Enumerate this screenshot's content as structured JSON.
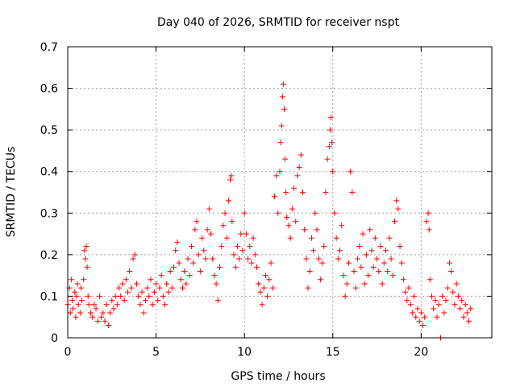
{
  "chart_data": {
    "type": "scatter",
    "title": "Day 040 of 2026, SRMTID for receiver nspt",
    "xlabel": "GPS time / hours",
    "ylabel": "SRMTID / TECUs",
    "xlim": [
      0,
      24
    ],
    "ylim": [
      0,
      0.7
    ],
    "xticks": [
      0,
      5,
      10,
      15,
      20
    ],
    "xtick_labels": [
      "0",
      "5",
      "10",
      "15",
      "20"
    ],
    "yticks": [
      0,
      0.1,
      0.2,
      0.3,
      0.4,
      0.5,
      0.6,
      0.7
    ],
    "ytick_labels": [
      "0",
      "0.1",
      "0.2",
      "0.3",
      "0.4",
      "0.5",
      "0.6",
      "0.7"
    ],
    "grid": true,
    "marker": "+",
    "series": [
      {
        "name": "SRMTID",
        "color": "#ff0000",
        "points": [
          [
            0.0,
            0.08
          ],
          [
            0.1,
            0.12
          ],
          [
            0.15,
            0.06
          ],
          [
            0.2,
            0.14
          ],
          [
            0.25,
            0.09
          ],
          [
            0.3,
            0.07
          ],
          [
            0.4,
            0.11
          ],
          [
            0.45,
            0.05
          ],
          [
            0.5,
            0.1
          ],
          [
            0.55,
            0.13
          ],
          [
            0.6,
            0.08
          ],
          [
            0.7,
            0.06
          ],
          [
            0.75,
            0.12
          ],
          [
            0.8,
            0.09
          ],
          [
            0.9,
            0.14
          ],
          [
            0.95,
            0.21
          ],
          [
            1.0,
            0.19
          ],
          [
            1.05,
            0.22
          ],
          [
            1.1,
            0.17
          ],
          [
            1.15,
            0.1
          ],
          [
            1.2,
            0.08
          ],
          [
            1.3,
            0.06
          ],
          [
            1.4,
            0.05
          ],
          [
            1.5,
            0.08
          ],
          [
            1.6,
            0.07
          ],
          [
            1.7,
            0.04
          ],
          [
            1.8,
            0.1
          ],
          [
            1.9,
            0.05
          ],
          [
            2.0,
            0.06
          ],
          [
            2.1,
            0.04
          ],
          [
            2.2,
            0.08
          ],
          [
            2.3,
            0.03
          ],
          [
            2.4,
            0.06
          ],
          [
            2.5,
            0.09
          ],
          [
            2.6,
            0.07
          ],
          [
            2.7,
            0.1
          ],
          [
            2.8,
            0.08
          ],
          [
            2.9,
            0.12
          ],
          [
            3.0,
            0.1
          ],
          [
            3.1,
            0.13
          ],
          [
            3.2,
            0.09
          ],
          [
            3.3,
            0.14
          ],
          [
            3.4,
            0.11
          ],
          [
            3.5,
            0.16
          ],
          [
            3.6,
            0.12
          ],
          [
            3.7,
            0.19
          ],
          [
            3.8,
            0.2
          ],
          [
            3.9,
            0.13
          ],
          [
            4.0,
            0.1
          ],
          [
            4.1,
            0.08
          ],
          [
            4.2,
            0.11
          ],
          [
            4.3,
            0.06
          ],
          [
            4.4,
            0.09
          ],
          [
            4.5,
            0.12
          ],
          [
            4.6,
            0.1
          ],
          [
            4.7,
            0.14
          ],
          [
            4.8,
            0.08
          ],
          [
            4.9,
            0.11
          ],
          [
            5.0,
            0.13
          ],
          [
            5.1,
            0.09
          ],
          [
            5.2,
            0.12
          ],
          [
            5.3,
            0.15
          ],
          [
            5.4,
            0.1
          ],
          [
            5.5,
            0.08
          ],
          [
            5.6,
            0.13
          ],
          [
            5.7,
            0.11
          ],
          [
            5.8,
            0.16
          ],
          [
            5.9,
            0.12
          ],
          [
            6.0,
            0.17
          ],
          [
            6.1,
            0.21
          ],
          [
            6.2,
            0.23
          ],
          [
            6.3,
            0.18
          ],
          [
            6.4,
            0.14
          ],
          [
            6.5,
            0.12
          ],
          [
            6.6,
            0.16
          ],
          [
            6.7,
            0.13
          ],
          [
            6.8,
            0.19
          ],
          [
            6.9,
            0.15
          ],
          [
            7.0,
            0.22
          ],
          [
            7.1,
            0.18
          ],
          [
            7.2,
            0.26
          ],
          [
            7.3,
            0.28
          ],
          [
            7.4,
            0.2
          ],
          [
            7.5,
            0.16
          ],
          [
            7.6,
            0.24
          ],
          [
            7.7,
            0.21
          ],
          [
            7.8,
            0.19
          ],
          [
            7.9,
            0.26
          ],
          [
            8.0,
            0.31
          ],
          [
            8.1,
            0.25
          ],
          [
            8.2,
            0.19
          ],
          [
            8.3,
            0.15
          ],
          [
            8.4,
            0.13
          ],
          [
            8.5,
            0.09
          ],
          [
            8.6,
            0.17
          ],
          [
            8.7,
            0.22
          ],
          [
            8.8,
            0.27
          ],
          [
            8.9,
            0.3
          ],
          [
            9.0,
            0.24
          ],
          [
            9.1,
            0.33
          ],
          [
            9.2,
            0.38
          ],
          [
            9.25,
            0.39
          ],
          [
            9.3,
            0.28
          ],
          [
            9.4,
            0.2
          ],
          [
            9.5,
            0.17
          ],
          [
            9.6,
            0.22
          ],
          [
            9.7,
            0.19
          ],
          [
            9.8,
            0.25
          ],
          [
            9.9,
            0.21
          ],
          [
            10.0,
            0.3
          ],
          [
            10.1,
            0.25
          ],
          [
            10.2,
            0.19
          ],
          [
            10.3,
            0.22
          ],
          [
            10.4,
            0.18
          ],
          [
            10.5,
            0.24
          ],
          [
            10.6,
            0.2
          ],
          [
            10.7,
            0.17
          ],
          [
            10.8,
            0.13
          ],
          [
            10.9,
            0.11
          ],
          [
            11.0,
            0.08
          ],
          [
            11.1,
            0.12
          ],
          [
            11.2,
            0.15
          ],
          [
            11.3,
            0.1
          ],
          [
            11.4,
            0.14
          ],
          [
            11.5,
            0.18
          ],
          [
            11.6,
            0.12
          ],
          [
            11.7,
            0.34
          ],
          [
            11.8,
            0.39
          ],
          [
            11.9,
            0.3
          ],
          [
            12.0,
            0.4
          ],
          [
            12.05,
            0.47
          ],
          [
            12.1,
            0.51
          ],
          [
            12.15,
            0.58
          ],
          [
            12.2,
            0.61
          ],
          [
            12.25,
            0.55
          ],
          [
            12.3,
            0.43
          ],
          [
            12.35,
            0.35
          ],
          [
            12.4,
            0.29
          ],
          [
            12.5,
            0.27
          ],
          [
            12.6,
            0.24
          ],
          [
            12.7,
            0.31
          ],
          [
            12.8,
            0.36
          ],
          [
            12.9,
            0.28
          ],
          [
            13.0,
            0.39
          ],
          [
            13.1,
            0.41
          ],
          [
            13.2,
            0.44
          ],
          [
            13.3,
            0.35
          ],
          [
            13.4,
            0.26
          ],
          [
            13.5,
            0.19
          ],
          [
            13.6,
            0.12
          ],
          [
            13.7,
            0.16
          ],
          [
            13.8,
            0.24
          ],
          [
            13.9,
            0.21
          ],
          [
            14.0,
            0.3
          ],
          [
            14.1,
            0.26
          ],
          [
            14.2,
            0.19
          ],
          [
            14.3,
            0.14
          ],
          [
            14.4,
            0.18
          ],
          [
            14.5,
            0.22
          ],
          [
            14.6,
            0.35
          ],
          [
            14.7,
            0.43
          ],
          [
            14.8,
            0.46
          ],
          [
            14.85,
            0.5
          ],
          [
            14.9,
            0.53
          ],
          [
            14.95,
            0.47
          ],
          [
            15.0,
            0.4
          ],
          [
            15.1,
            0.3
          ],
          [
            15.2,
            0.24
          ],
          [
            15.3,
            0.19
          ],
          [
            15.4,
            0.21
          ],
          [
            15.5,
            0.27
          ],
          [
            15.6,
            0.15
          ],
          [
            15.7,
            0.1
          ],
          [
            15.8,
            0.13
          ],
          [
            15.9,
            0.18
          ],
          [
            16.0,
            0.4
          ],
          [
            16.1,
            0.35
          ],
          [
            16.2,
            0.16
          ],
          [
            16.3,
            0.12
          ],
          [
            16.4,
            0.19
          ],
          [
            16.5,
            0.22
          ],
          [
            16.6,
            0.17
          ],
          [
            16.7,
            0.25
          ],
          [
            16.8,
            0.13
          ],
          [
            16.9,
            0.2
          ],
          [
            17.0,
            0.15
          ],
          [
            17.1,
            0.26
          ],
          [
            17.2,
            0.21
          ],
          [
            17.3,
            0.17
          ],
          [
            17.4,
            0.24
          ],
          [
            17.5,
            0.19
          ],
          [
            17.6,
            0.16
          ],
          [
            17.7,
            0.22
          ],
          [
            17.8,
            0.13
          ],
          [
            17.9,
            0.18
          ],
          [
            18.0,
            0.21
          ],
          [
            18.1,
            0.16
          ],
          [
            18.2,
            0.24
          ],
          [
            18.3,
            0.19
          ],
          [
            18.4,
            0.15
          ],
          [
            18.5,
            0.28
          ],
          [
            18.6,
            0.33
          ],
          [
            18.7,
            0.31
          ],
          [
            18.8,
            0.22
          ],
          [
            18.9,
            0.18
          ],
          [
            19.0,
            0.14
          ],
          [
            19.1,
            0.11
          ],
          [
            19.2,
            0.09
          ],
          [
            19.3,
            0.12
          ],
          [
            19.4,
            0.08
          ],
          [
            19.5,
            0.06
          ],
          [
            19.6,
            0.1
          ],
          [
            19.7,
            0.05
          ],
          [
            19.8,
            0.07
          ],
          [
            19.9,
            0.04
          ],
          [
            20.0,
            0.06
          ],
          [
            20.1,
            0.03
          ],
          [
            20.2,
            0.05
          ],
          [
            20.3,
            0.28
          ],
          [
            20.4,
            0.3
          ],
          [
            20.45,
            0.26
          ],
          [
            20.5,
            0.14
          ],
          [
            20.6,
            0.1
          ],
          [
            20.7,
            0.07
          ],
          [
            20.8,
            0.09
          ],
          [
            20.9,
            0.05
          ],
          [
            21.0,
            0.08
          ],
          [
            21.1,
            0.0
          ],
          [
            21.2,
            0.1
          ],
          [
            21.3,
            0.06
          ],
          [
            21.4,
            0.09
          ],
          [
            21.5,
            0.12
          ],
          [
            21.6,
            0.18
          ],
          [
            21.7,
            0.16
          ],
          [
            21.8,
            0.11
          ],
          [
            21.9,
            0.08
          ],
          [
            22.0,
            0.13
          ],
          [
            22.1,
            0.1
          ],
          [
            22.2,
            0.07
          ],
          [
            22.3,
            0.09
          ],
          [
            22.4,
            0.05
          ],
          [
            22.5,
            0.08
          ],
          [
            22.6,
            0.06
          ],
          [
            22.7,
            0.04
          ],
          [
            22.8,
            0.07
          ]
        ]
      }
    ]
  }
}
